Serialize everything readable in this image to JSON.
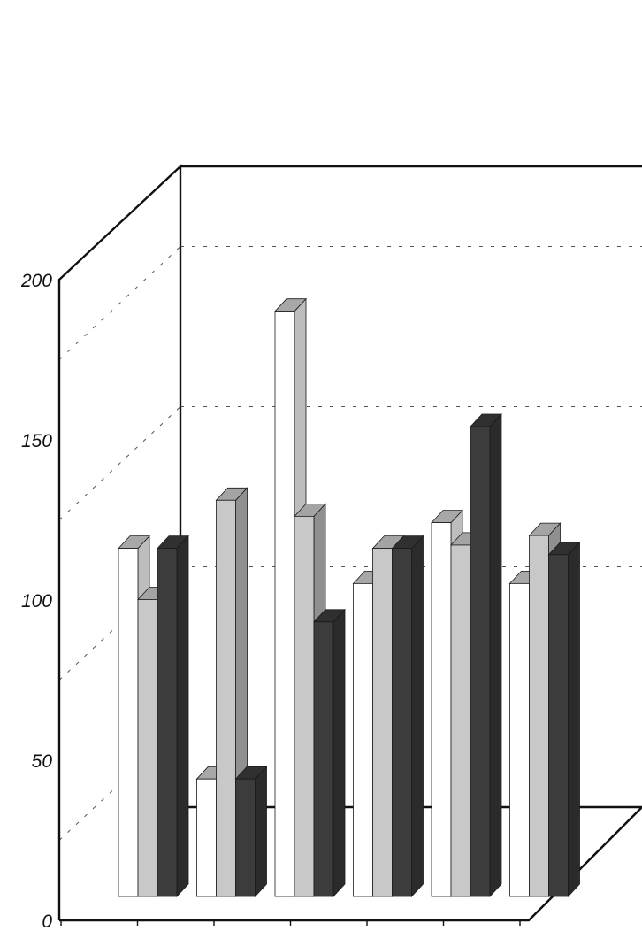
{
  "chart_data": {
    "type": "bar",
    "style": "3d-clustered",
    "title": "",
    "xlabel": "",
    "ylabel": "",
    "categories": [
      "",
      "",
      "",
      "",
      "",
      ""
    ],
    "series": [
      {
        "values": [
          112,
          40,
          186,
          101,
          120,
          101
        ],
        "color": "#ffffff"
      },
      {
        "values": [
          96,
          127,
          122,
          112,
          113,
          116
        ],
        "color": "#c8c8c8"
      },
      {
        "values": [
          112,
          40,
          89,
          112,
          150,
          110
        ],
        "color": "#3c3c3c"
      }
    ],
    "ylim": [
      0,
      200
    ],
    "yticks": [
      "0",
      "50",
      "100",
      "150",
      "200"
    ],
    "grid": true,
    "legend": "none"
  }
}
